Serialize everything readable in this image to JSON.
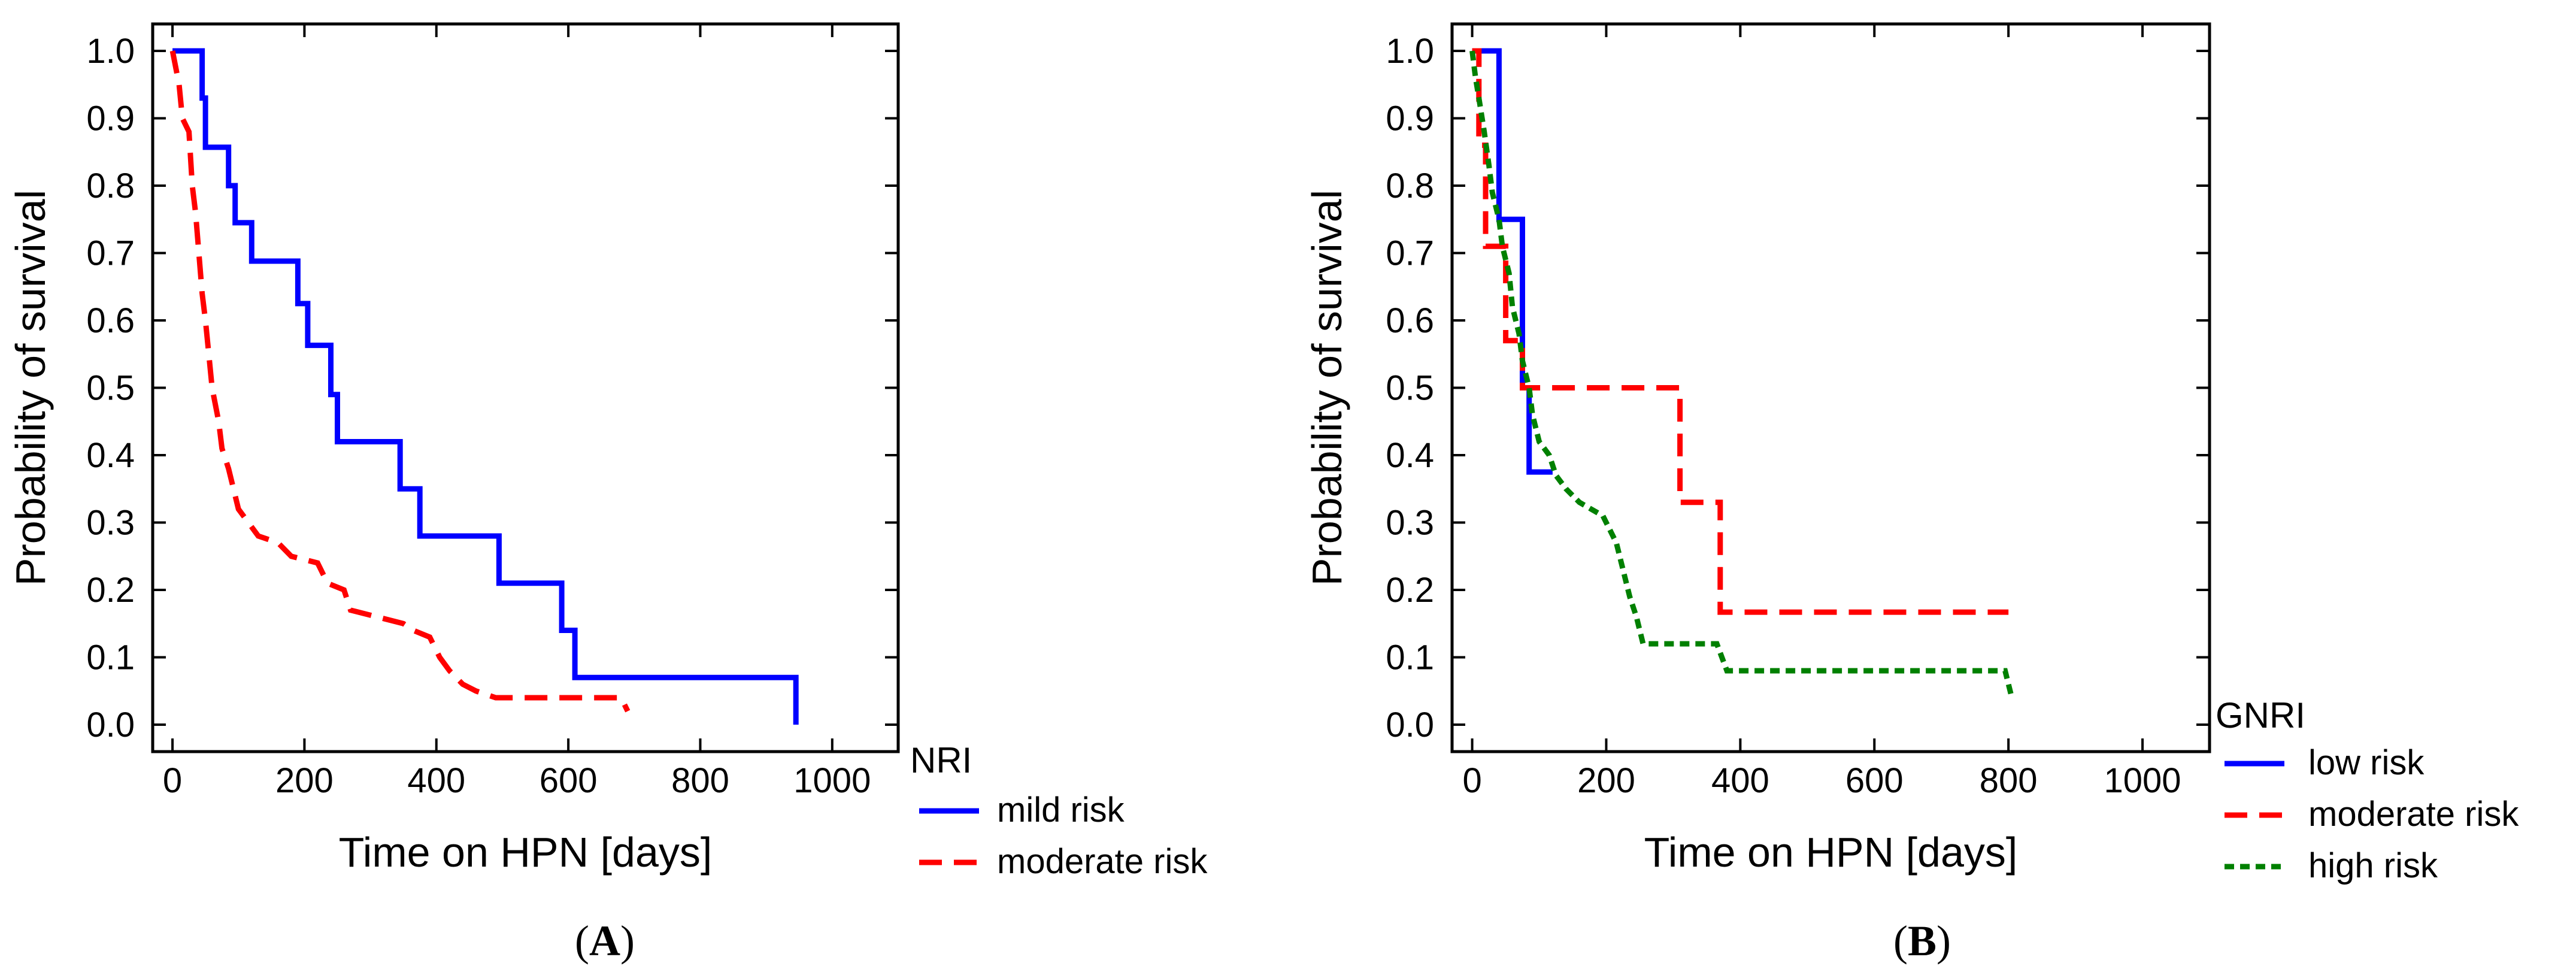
{
  "chart_data": [
    {
      "type": "line",
      "subtype": "kaplan-meier",
      "panel_label": "A",
      "xlabel": "Time on HPN [days]",
      "ylabel": "Probability of survival",
      "xlim": [
        -30,
        1100
      ],
      "ylim": [
        -0.04,
        1.04
      ],
      "x_ticks": [
        0,
        200,
        400,
        600,
        800,
        1000
      ],
      "y_ticks": [
        "0.0",
        "0.1",
        "0.2",
        "0.3",
        "0.4",
        "0.5",
        "0.6",
        "0.7",
        "0.8",
        "0.9",
        "1.0"
      ],
      "legend_title": "NRI",
      "series": [
        {
          "name": "mild risk",
          "color": "#0000FF",
          "dash": "solid",
          "points": [
            [
              0,
              1.0
            ],
            [
              45,
              1.0
            ],
            [
              45,
              0.93
            ],
            [
              50,
              0.93
            ],
            [
              50,
              0.857
            ],
            [
              85,
              0.857
            ],
            [
              85,
              0.8
            ],
            [
              95,
              0.8
            ],
            [
              95,
              0.745
            ],
            [
              120,
              0.745
            ],
            [
              120,
              0.688
            ],
            [
              190,
              0.688
            ],
            [
              190,
              0.625
            ],
            [
              205,
              0.625
            ],
            [
              205,
              0.563
            ],
            [
              240,
              0.563
            ],
            [
              240,
              0.49
            ],
            [
              250,
              0.49
            ],
            [
              250,
              0.42
            ],
            [
              345,
              0.42
            ],
            [
              345,
              0.35
            ],
            [
              375,
              0.35
            ],
            [
              375,
              0.28
            ],
            [
              495,
              0.28
            ],
            [
              495,
              0.21
            ],
            [
              590,
              0.21
            ],
            [
              590,
              0.14
            ],
            [
              610,
              0.14
            ],
            [
              610,
              0.07
            ],
            [
              945,
              0.07
            ],
            [
              945,
              0.0
            ]
          ]
        },
        {
          "name": "moderate risk",
          "color": "#FF0000",
          "dash": "dashed",
          "points": [
            [
              0,
              1.0
            ],
            [
              10,
              0.95
            ],
            [
              15,
              0.9
            ],
            [
              25,
              0.88
            ],
            [
              30,
              0.8
            ],
            [
              35,
              0.76
            ],
            [
              40,
              0.7
            ],
            [
              45,
              0.64
            ],
            [
              50,
              0.6
            ],
            [
              55,
              0.55
            ],
            [
              60,
              0.5
            ],
            [
              70,
              0.45
            ],
            [
              75,
              0.41
            ],
            [
              85,
              0.38
            ],
            [
              95,
              0.34
            ],
            [
              100,
              0.32
            ],
            [
              115,
              0.3
            ],
            [
              130,
              0.28
            ],
            [
              160,
              0.27
            ],
            [
              180,
              0.25
            ],
            [
              220,
              0.24
            ],
            [
              235,
              0.21
            ],
            [
              260,
              0.2
            ],
            [
              270,
              0.17
            ],
            [
              310,
              0.16
            ],
            [
              350,
              0.15
            ],
            [
              365,
              0.14
            ],
            [
              390,
              0.13
            ],
            [
              405,
              0.1
            ],
            [
              420,
              0.08
            ],
            [
              440,
              0.06
            ],
            [
              460,
              0.05
            ],
            [
              490,
              0.04
            ],
            [
              560,
              0.04
            ],
            [
              600,
              0.04
            ],
            [
              680,
              0.04
            ],
            [
              690,
              0.02
            ]
          ]
        }
      ]
    },
    {
      "type": "line",
      "subtype": "kaplan-meier",
      "panel_label": "B",
      "xlabel": "Time on HPN [days]",
      "ylabel": "Probability of survival",
      "xlim": [
        -30,
        1100
      ],
      "ylim": [
        -0.04,
        1.04
      ],
      "x_ticks": [
        0,
        200,
        400,
        600,
        800,
        1000
      ],
      "y_ticks": [
        "0.0",
        "0.1",
        "0.2",
        "0.3",
        "0.4",
        "0.5",
        "0.6",
        "0.7",
        "0.8",
        "0.9",
        "1.0"
      ],
      "legend_title": "GNRI",
      "series": [
        {
          "name": "low risk",
          "color": "#0000FF",
          "dash": "solid",
          "points": [
            [
              0,
              1.0
            ],
            [
              40,
              1.0
            ],
            [
              40,
              0.75
            ],
            [
              75,
              0.75
            ],
            [
              75,
              0.5
            ],
            [
              85,
              0.5
            ],
            [
              85,
              0.375
            ],
            [
              120,
              0.375
            ]
          ]
        },
        {
          "name": "moderate risk",
          "color": "#FF0000",
          "dash": "dashed",
          "points": [
            [
              0,
              1.0
            ],
            [
              10,
              1.0
            ],
            [
              10,
              0.86
            ],
            [
              20,
              0.86
            ],
            [
              20,
              0.71
            ],
            [
              50,
              0.71
            ],
            [
              50,
              0.57
            ],
            [
              75,
              0.57
            ],
            [
              75,
              0.5
            ],
            [
              310,
              0.5
            ],
            [
              310,
              0.33
            ],
            [
              370,
              0.33
            ],
            [
              370,
              0.167
            ],
            [
              800,
              0.167
            ]
          ]
        },
        {
          "name": "high risk",
          "color": "#008000",
          "dash": "dotted",
          "points": [
            [
              0,
              1.0
            ],
            [
              5,
              0.96
            ],
            [
              10,
              0.93
            ],
            [
              18,
              0.88
            ],
            [
              25,
              0.83
            ],
            [
              30,
              0.79
            ],
            [
              40,
              0.75
            ],
            [
              45,
              0.71
            ],
            [
              55,
              0.67
            ],
            [
              60,
              0.62
            ],
            [
              70,
              0.58
            ],
            [
              75,
              0.54
            ],
            [
              85,
              0.5
            ],
            [
              90,
              0.46
            ],
            [
              100,
              0.42
            ],
            [
              115,
              0.4
            ],
            [
              125,
              0.37
            ],
            [
              140,
              0.35
            ],
            [
              160,
              0.33
            ],
            [
              195,
              0.31
            ],
            [
              205,
              0.29
            ],
            [
              215,
              0.27
            ],
            [
              225,
              0.23
            ],
            [
              235,
              0.19
            ],
            [
              245,
              0.16
            ],
            [
              255,
              0.12
            ],
            [
              365,
              0.12
            ],
            [
              380,
              0.08
            ],
            [
              795,
              0.08
            ],
            [
              800,
              0.06
            ],
            [
              805,
              0.04
            ]
          ]
        }
      ]
    }
  ]
}
